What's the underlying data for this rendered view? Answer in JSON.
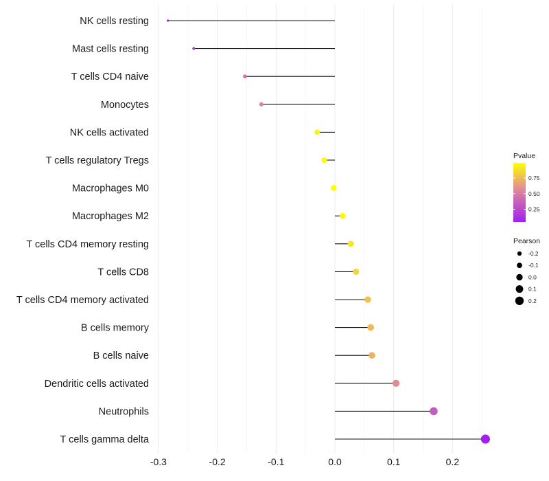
{
  "chart_data": {
    "type": "lollipop",
    "xlabel": "",
    "ylabel": "",
    "xlim": [
      -0.3,
      0.26
    ],
    "x_ticks": [
      -0.3,
      -0.2,
      -0.1,
      0.0,
      0.1,
      0.2
    ],
    "x_tick_labels": [
      "-0.3",
      "-0.2",
      "-0.1",
      "0.0",
      "0.1",
      "0.2"
    ],
    "grid": "vertical major and minor",
    "categories": [
      "NK cells resting",
      "Mast cells resting",
      "T cells CD4 naive",
      "Monocytes",
      "NK cells activated",
      "T cells regulatory  Tregs ",
      "Macrophages M0",
      "Macrophages M2",
      "T cells CD4 memory resting",
      "T cells CD8",
      "T cells CD4 memory activated",
      "B cells memory",
      "B cells naive",
      "Dendritic cells activated",
      "Neutrophils",
      "T cells gamma delta"
    ],
    "pearson": [
      -0.284,
      -0.24,
      -0.153,
      -0.125,
      -0.03,
      -0.018,
      -0.002,
      0.013,
      0.027,
      0.036,
      0.056,
      0.061,
      0.063,
      0.104,
      0.168,
      0.256
    ],
    "pvalue": [
      0.05,
      0.15,
      0.45,
      0.55,
      0.95,
      0.97,
      0.99,
      0.96,
      0.9,
      0.84,
      0.78,
      0.74,
      0.72,
      0.58,
      0.35,
      0.05
    ],
    "legend_color": {
      "title": "Pvalue",
      "range": [
        0.05,
        0.99
      ],
      "ticks": [
        0.25,
        0.5,
        0.75
      ],
      "tick_labels": [
        "0.25",
        "0.50",
        "0.75"
      ],
      "low_color": "#a020f0",
      "mid_color": "#e0899a",
      "high_color": "#ffff00",
      "placement": "right"
    },
    "legend_size": {
      "title": "Pearson",
      "values": [
        -0.2,
        -0.1,
        0.0,
        0.1,
        0.2
      ],
      "labels": [
        "-0.2",
        "-0.1",
        "0.0",
        "0.1",
        "0.2"
      ],
      "placement": "right"
    }
  }
}
